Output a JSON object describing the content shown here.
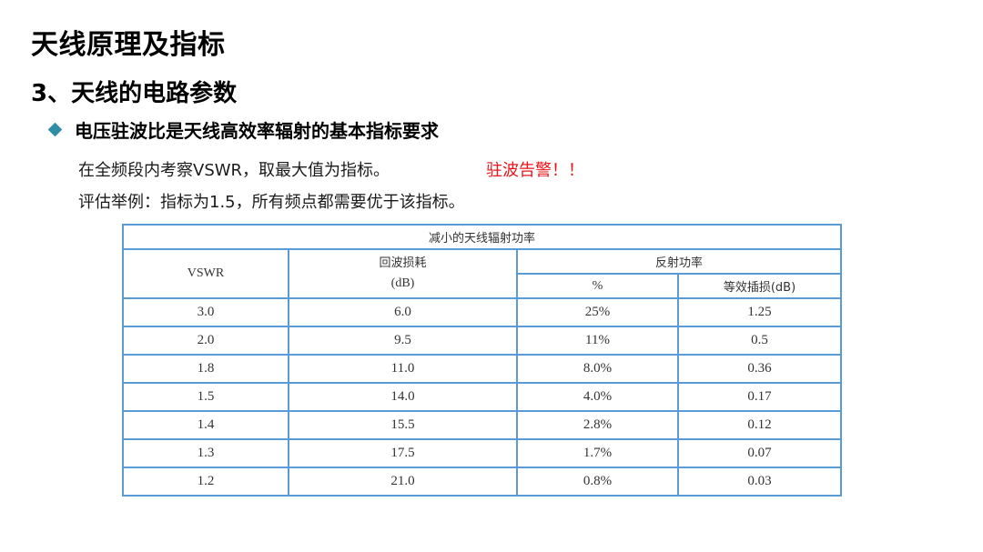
{
  "slide": {
    "title": "天线原理及指标",
    "section": "3、天线的电路参数",
    "bullet": "电压驻波比是天线高效率辐射的基本指标要求",
    "line1": "在全频段内考察VSWR，取最大值为指标。",
    "warning": "驻波告警！！",
    "line2": "评估举例：指标为1.5，所有频点都需要优于该指标。"
  },
  "table": {
    "caption": "减小的天线辐射功率",
    "headers": {
      "vswr": "VSWR",
      "return_loss": "回波损耗",
      "return_loss_unit": "(dB)",
      "reflected_power": "反射功率",
      "percent": "%",
      "insertion_loss": "等效插损(dB)"
    },
    "rows": [
      {
        "vswr": "3.0",
        "rl": "6.0",
        "pct": "25%",
        "il": "1.25"
      },
      {
        "vswr": "2.0",
        "rl": "9.5",
        "pct": "11%",
        "il": "0.5"
      },
      {
        "vswr": "1.8",
        "rl": "11.0",
        "pct": "8.0%",
        "il": "0.36"
      },
      {
        "vswr": "1.5",
        "rl": "14.0",
        "pct": "4.0%",
        "il": "0.17"
      },
      {
        "vswr": "1.4",
        "rl": "15.5",
        "pct": "2.8%",
        "il": "0.12"
      },
      {
        "vswr": "1.3",
        "rl": "17.5",
        "pct": "1.7%",
        "il": "0.07"
      },
      {
        "vswr": "1.2",
        "rl": "21.0",
        "pct": "0.8%",
        "il": "0.03"
      }
    ]
  },
  "colors": {
    "bullet": "#2f8ea5",
    "warning": "#e8141a",
    "table_border": "#5b9bd5"
  }
}
